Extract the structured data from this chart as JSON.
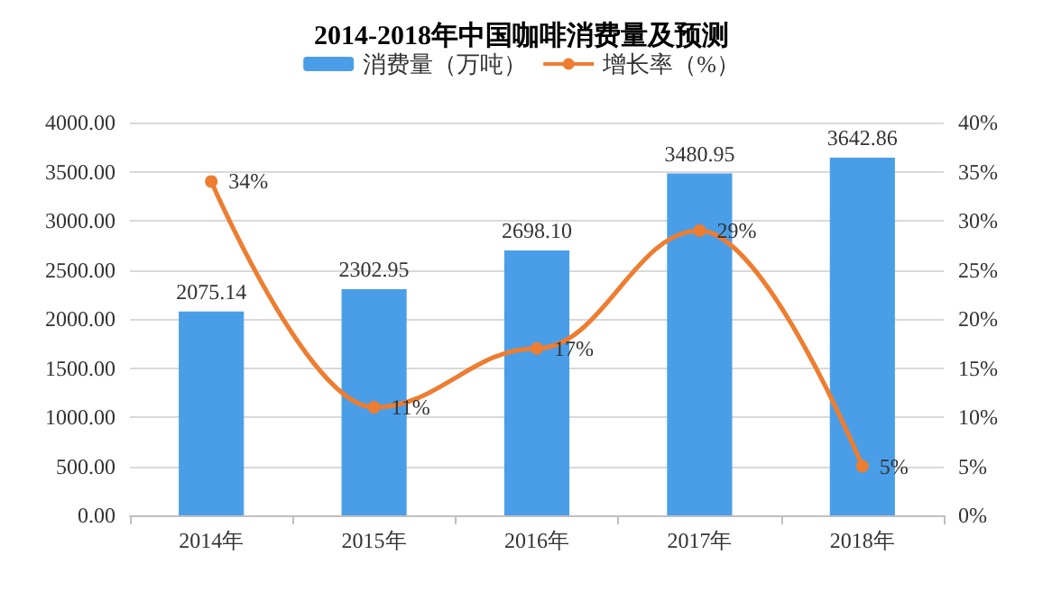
{
  "chart_data": {
    "type": "bar",
    "title": "2014-2018年中国咖啡消费量及预测",
    "categories": [
      "2014年",
      "2015年",
      "2016年",
      "2017年",
      "2018年"
    ],
    "series": [
      {
        "name": "消费量（万吨）",
        "color": "#4a9ee8",
        "values": [
          2075.14,
          2302.95,
          2698.1,
          3480.95,
          3642.86
        ],
        "value_labels": [
          "2075.14",
          "2302.95",
          "2698.10",
          "3480.95",
          "3642.86"
        ]
      },
      {
        "name": "增长率（%）",
        "type": "line",
        "axis": "y2",
        "color": "#ed7d31",
        "values": [
          34,
          11,
          17,
          29,
          5
        ],
        "value_labels": [
          "34%",
          "11%",
          "17%",
          "29%",
          "5%"
        ]
      }
    ],
    "ylim": [
      0,
      4000
    ],
    "yticks": [
      {
        "value": 0,
        "label": "0.00"
      },
      {
        "value": 500,
        "label": "500.00"
      },
      {
        "value": 1000,
        "label": "1000.00"
      },
      {
        "value": 1500,
        "label": "1500.00"
      },
      {
        "value": 2000,
        "label": "2000.00"
      },
      {
        "value": 2500,
        "label": "2500.00"
      },
      {
        "value": 3000,
        "label": "3000.00"
      },
      {
        "value": 3500,
        "label": "3500.00"
      },
      {
        "value": 4000,
        "label": "4000.00"
      }
    ],
    "y2lim": [
      0,
      40
    ],
    "y2ticks": [
      {
        "value": 0,
        "label": "0%"
      },
      {
        "value": 5,
        "label": "5%"
      },
      {
        "value": 10,
        "label": "10%"
      },
      {
        "value": 15,
        "label": "15%"
      },
      {
        "value": 20,
        "label": "20%"
      },
      {
        "value": 25,
        "label": "25%"
      },
      {
        "value": 30,
        "label": "30%"
      },
      {
        "value": 35,
        "label": "35%"
      },
      {
        "value": 40,
        "label": "40%"
      }
    ],
    "grid": "y",
    "legend": "top",
    "marker": "circle",
    "line_style": "solid"
  }
}
